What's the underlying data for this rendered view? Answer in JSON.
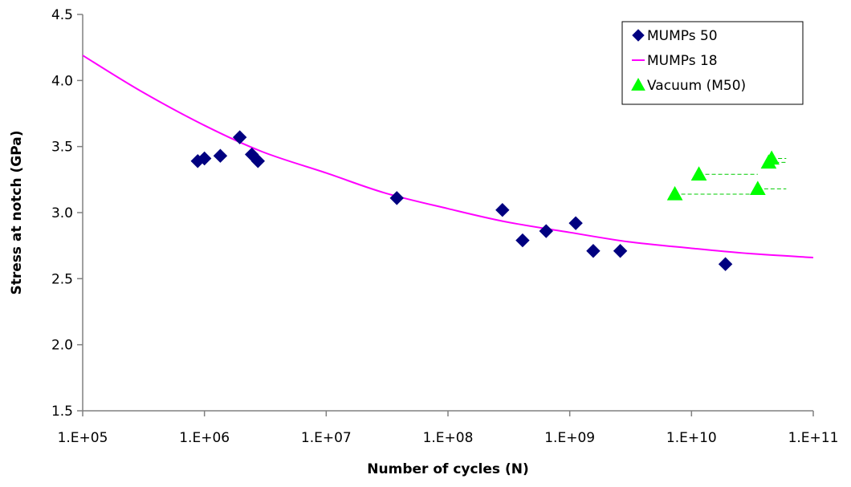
{
  "chart_data": {
    "type": "scatter",
    "title": "",
    "xlabel": "Number of cycles (N)",
    "ylabel": "Stress at notch (GPa)",
    "x_scale": "log",
    "xlim": [
      100000,
      100000000000
    ],
    "ylim": [
      1.5,
      4.5
    ],
    "x_ticks": [
      100000,
      1000000,
      10000000,
      100000000,
      1000000000,
      10000000000,
      100000000000
    ],
    "x_tick_labels": [
      "1.E+05",
      "1.E+06",
      "1.E+07",
      "1.E+08",
      "1.E+09",
      "1.E+10",
      "1.E+11"
    ],
    "y_ticks": [
      1.5,
      2.0,
      2.5,
      3.0,
      3.5,
      4.0,
      4.5
    ],
    "y_tick_labels": [
      "1.5",
      "2.0",
      "2.5",
      "3.0",
      "3.5",
      "4.0",
      "4.5"
    ],
    "grid": false,
    "legend_position": "top-right",
    "series": [
      {
        "name": "MUMPs 50",
        "kind": "scatter",
        "marker": "diamond",
        "color": "#000080",
        "points": [
          {
            "x": 880000,
            "y": 3.39
          },
          {
            "x": 1000000,
            "y": 3.41
          },
          {
            "x": 1350000,
            "y": 3.43
          },
          {
            "x": 1950000,
            "y": 3.57
          },
          {
            "x": 2450000,
            "y": 3.44
          },
          {
            "x": 2750000,
            "y": 3.39
          },
          {
            "x": 38000000,
            "y": 3.11
          },
          {
            "x": 280000000,
            "y": 3.02
          },
          {
            "x": 410000000,
            "y": 2.79
          },
          {
            "x": 640000000,
            "y": 2.86
          },
          {
            "x": 1120000000,
            "y": 2.92
          },
          {
            "x": 1560000000,
            "y": 2.71
          },
          {
            "x": 2600000000,
            "y": 2.71
          },
          {
            "x": 19000000000,
            "y": 2.61
          }
        ]
      },
      {
        "name": "MUMPs 18",
        "kind": "line",
        "color": "#ff00ff",
        "points": [
          {
            "x": 100000,
            "y": 4.19
          },
          {
            "x": 300000,
            "y": 3.92
          },
          {
            "x": 1000000,
            "y": 3.66
          },
          {
            "x": 3000000,
            "y": 3.46
          },
          {
            "x": 10000000,
            "y": 3.3
          },
          {
            "x": 30000000,
            "y": 3.15
          },
          {
            "x": 100000000,
            "y": 3.03
          },
          {
            "x": 300000000,
            "y": 2.93
          },
          {
            "x": 1000000000,
            "y": 2.85
          },
          {
            "x": 3000000000,
            "y": 2.78
          },
          {
            "x": 10000000000,
            "y": 2.73
          },
          {
            "x": 30000000000,
            "y": 2.69
          },
          {
            "x": 100000000000,
            "y": 2.66
          }
        ]
      },
      {
        "name": "Vacuum (M50)",
        "kind": "scatter",
        "marker": "triangle",
        "color": "#00ff00",
        "runout_color": "#00cc00",
        "points": [
          {
            "x": 7300000000,
            "y": 3.14,
            "runout_to": 35000000000
          },
          {
            "x": 11500000000,
            "y": 3.29,
            "runout_to": 35000000000
          },
          {
            "x": 35000000000,
            "y": 3.18,
            "runout_to": 60000000000
          },
          {
            "x": 43000000000,
            "y": 3.38,
            "runout_to": 60000000000
          },
          {
            "x": 45500000000,
            "y": 3.41,
            "runout_to": 60000000000
          }
        ]
      }
    ]
  }
}
